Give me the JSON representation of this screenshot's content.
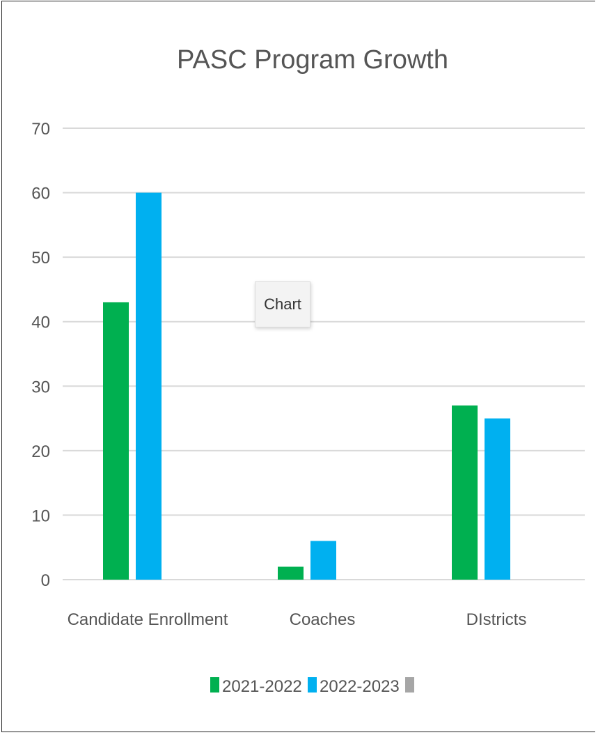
{
  "chart_data": {
    "type": "bar",
    "title": "PASC Program Growth",
    "categories": [
      "Candidate Enrollment",
      "Coaches",
      "DIstricts"
    ],
    "series": [
      {
        "name": "2021-2022",
        "color": "#00b050",
        "values": [
          43,
          2,
          27
        ]
      },
      {
        "name": "2022-2023",
        "color": "#00b0f0",
        "values": [
          60,
          6,
          25
        ]
      }
    ],
    "legend_extra_color": "#a6a6a6",
    "ylim": [
      0,
      70
    ],
    "yticks": [
      0,
      10,
      20,
      30,
      40,
      50,
      60,
      70
    ],
    "grid": true,
    "legend_position": "bottom",
    "tooltip_text": "Chart"
  }
}
